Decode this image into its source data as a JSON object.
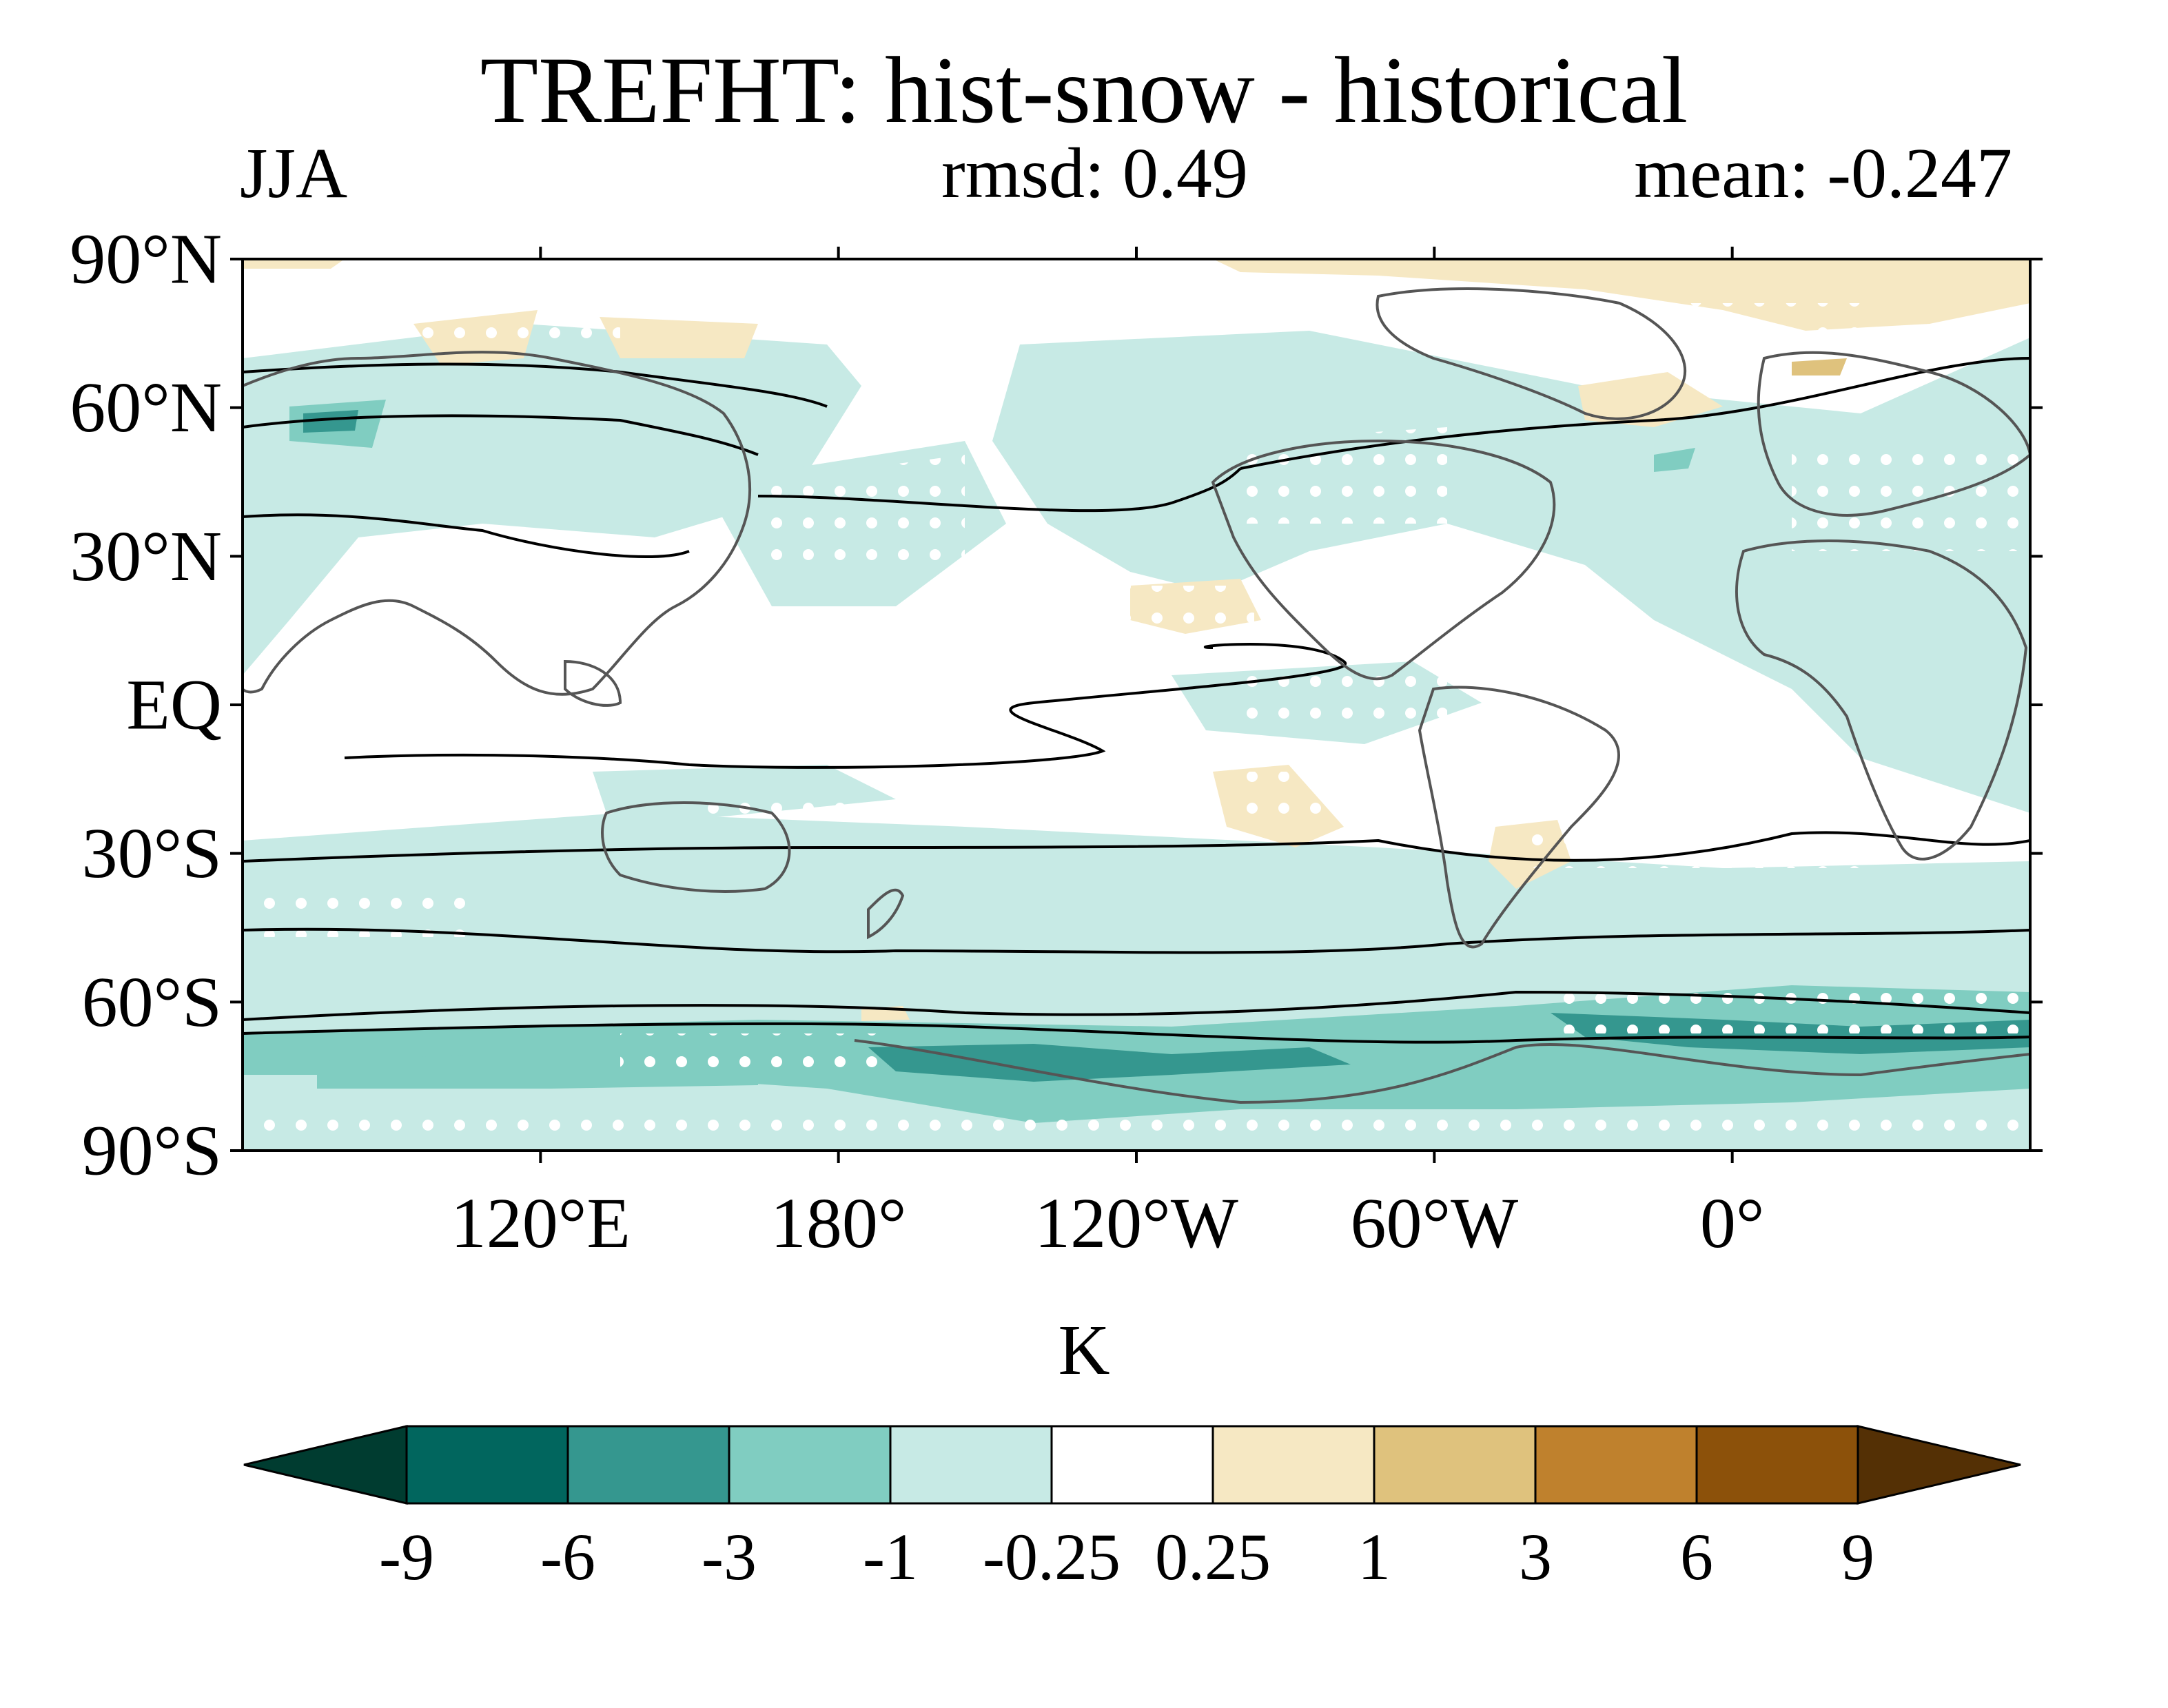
{
  "title": "TREFHT: hist-snow - historical",
  "season": "JJA",
  "rmsd": "rmsd: 0.49",
  "mean": "mean: -0.247",
  "units": "K",
  "lat_labels": [
    "90°N",
    "60°N",
    "30°N",
    "EQ",
    "30°S",
    "60°S",
    "90°S"
  ],
  "lon_labels": [
    "120°E",
    "180°",
    "120°W",
    "60°W",
    "0°"
  ],
  "colorbar": {
    "labels": [
      "-9",
      "-6",
      "-3",
      "-1",
      "-0.25",
      "0.25",
      "1",
      "3",
      "6",
      "9"
    ],
    "colors": [
      "#003c30",
      "#01665e",
      "#35978f",
      "#80cdc1",
      "#c7eae5",
      "#ffffff",
      "#f6e8c3",
      "#dfc27d",
      "#bf812d",
      "#8c510a",
      "#543005"
    ]
  },
  "chart_data": {
    "type": "map",
    "projection": "equirectangular",
    "lon_range": [
      60,
      420
    ],
    "lat_range": [
      -90,
      90
    ],
    "variable": "TREFHT",
    "levels": [
      -9,
      -6,
      -3,
      -1,
      -0.25,
      0.25,
      1,
      3,
      6,
      9
    ],
    "stippling": true
  }
}
